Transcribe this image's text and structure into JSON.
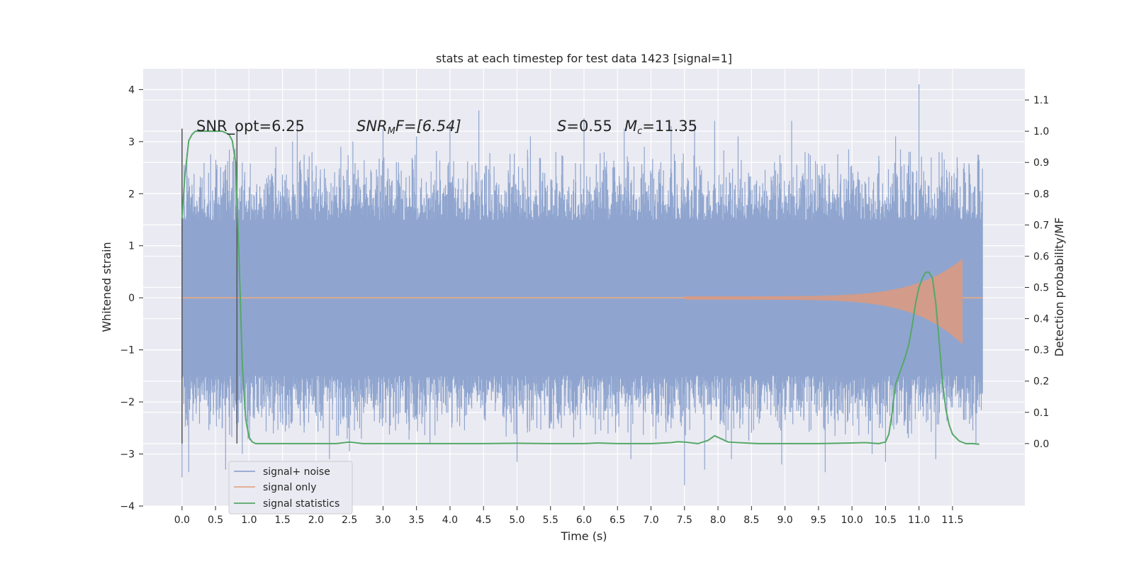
{
  "chart_data": {
    "type": "line",
    "title": "stats at each timestep for test data 1423 [signal=1]",
    "xlabel": "Time (s)",
    "ylabel": "Whitened strain",
    "ylabel_right": "Detection probability/MF",
    "xlim": [
      -0.58,
      12.58
    ],
    "ylim": [
      -4,
      4.4
    ],
    "ylim_right": [
      -0.2,
      1.2
    ],
    "x_ticks": [
      0.0,
      0.5,
      1.0,
      1.5,
      2.0,
      2.5,
      3.0,
      3.5,
      4.0,
      4.5,
      5.0,
      5.5,
      6.0,
      6.5,
      7.0,
      7.5,
      8.0,
      8.5,
      9.0,
      9.5,
      10.0,
      10.5,
      11.0,
      11.5
    ],
    "x_tick_labels": [
      "0.0",
      "0.5",
      "1.0",
      "1.5",
      "2.0",
      "2.5",
      "3.0",
      "3.5",
      "4.0",
      "4.5",
      "5.0",
      "5.5",
      "6.0",
      "6.5",
      "7.0",
      "7.5",
      "8.0",
      "8.5",
      "9.0",
      "9.5",
      "10.0",
      "10.5",
      "11.0",
      "11.5"
    ],
    "y_ticks": [
      -4,
      -3,
      -2,
      -1,
      0,
      1,
      2,
      3,
      4
    ],
    "y_tick_labels": [
      "−4",
      "−3",
      "−2",
      "−1",
      "0",
      "1",
      "2",
      "3",
      "4"
    ],
    "y2_ticks": [
      0.0,
      0.1,
      0.2,
      0.3,
      0.4,
      0.5,
      0.6,
      0.7,
      0.8,
      0.9,
      1.0,
      1.1
    ],
    "y2_tick_labels": [
      "0.0",
      "0.1",
      "0.2",
      "0.3",
      "0.4",
      "0.5",
      "0.6",
      "0.7",
      "0.8",
      "0.9",
      "1.0",
      "1.1"
    ],
    "grid": true,
    "legend_position": "lower-left",
    "colors": {
      "background": "#eaeaf2",
      "grid": "#ffffff",
      "signal_noise": "#8fa5cf",
      "signal_only": "#dd8452",
      "statistics": "#55a868",
      "marker": "#555555"
    },
    "series": [
      {
        "name": "signal+ noise",
        "axis": "left",
        "description": "noisy whitened strain, spans x 0.0 to 11.95",
        "x_range": [
          0.0,
          11.95
        ],
        "envelope": [
          -1.5,
          1.5
        ],
        "peaks": [
          [
            0.1,
            2.3
          ],
          [
            0.3,
            2.3
          ],
          [
            0.65,
            2.55
          ],
          [
            0.9,
            2.6
          ],
          [
            1.4,
            2.9
          ],
          [
            1.65,
            3.0
          ],
          [
            1.72,
            3.4
          ],
          [
            2.37,
            2.9
          ],
          [
            2.55,
            3.0
          ],
          [
            3.0,
            3.25
          ],
          [
            3.5,
            3.1
          ],
          [
            4.0,
            3.35
          ],
          [
            4.43,
            3.6
          ],
          [
            5.2,
            3.1
          ],
          [
            5.58,
            2.8
          ],
          [
            6.0,
            3.45
          ],
          [
            6.3,
            2.8
          ],
          [
            6.6,
            3.25
          ],
          [
            6.9,
            2.9
          ],
          [
            7.3,
            3.3
          ],
          [
            7.65,
            3.35
          ],
          [
            7.95,
            3.4
          ],
          [
            8.3,
            3.1
          ],
          [
            9.1,
            3.4
          ],
          [
            9.3,
            2.8
          ],
          [
            9.95,
            2.85
          ],
          [
            10.65,
            3.1
          ],
          [
            10.85,
            2.8
          ],
          [
            11.0,
            4.1
          ],
          [
            11.3,
            2.8
          ],
          [
            11.57,
            2.7
          ],
          [
            0.0,
            -3.45
          ],
          [
            0.1,
            -3.35
          ],
          [
            0.65,
            -3.3
          ],
          [
            0.9,
            -3.0
          ],
          [
            2.2,
            -3.1
          ],
          [
            2.5,
            -2.95
          ],
          [
            3.7,
            -2.8
          ],
          [
            5.0,
            -3.15
          ],
          [
            6.7,
            -3.1
          ],
          [
            7.5,
            -3.6
          ],
          [
            7.8,
            -3.3
          ],
          [
            8.2,
            -3.1
          ],
          [
            8.95,
            -3.2
          ],
          [
            9.6,
            -3.35
          ],
          [
            10.3,
            -3.0
          ],
          [
            10.5,
            -3.15
          ],
          [
            11.25,
            -3.1
          ],
          [
            11.85,
            -2.8
          ]
        ]
      },
      {
        "name": "signal only",
        "axis": "left",
        "description": "chirp signal, amplitude grows until merger near 11.65",
        "chirp_start": 7.5,
        "chirp_end": 11.65,
        "peak_amplitude": 0.75,
        "trough_amplitude": -0.9
      },
      {
        "name": "signal statistics",
        "axis": "right",
        "x": [
          0.0,
          0.04,
          0.1,
          0.15,
          0.2,
          0.3,
          0.4,
          0.5,
          0.6,
          0.7,
          0.75,
          0.8,
          0.85,
          0.9,
          0.95,
          1.0,
          1.05,
          1.1,
          1.2,
          1.5,
          2.0,
          2.3,
          2.5,
          2.7,
          3.0,
          3.5,
          4.0,
          4.5,
          5.0,
          5.5,
          6.0,
          6.2,
          6.5,
          7.0,
          7.3,
          7.4,
          7.5,
          7.7,
          7.85,
          7.95,
          8.05,
          8.15,
          8.3,
          8.6,
          9.0,
          9.5,
          10.0,
          10.2,
          10.4,
          10.5,
          10.55,
          10.6,
          10.65,
          10.7,
          10.75,
          10.8,
          10.85,
          10.9,
          10.95,
          11.0,
          11.05,
          11.1,
          11.15,
          11.2,
          11.25,
          11.3,
          11.35,
          11.4,
          11.45,
          11.5,
          11.6,
          11.7,
          11.8,
          11.9
        ],
        "values": [
          0.72,
          0.85,
          0.97,
          0.99,
          1.0,
          1.0,
          1.0,
          1.0,
          1.0,
          0.99,
          0.97,
          0.9,
          0.6,
          0.25,
          0.08,
          0.02,
          0.005,
          0.0,
          0.0,
          0.0,
          0.0,
          0.0,
          0.005,
          0.0,
          0.0,
          0.0,
          0.0,
          0.0,
          0.001,
          0.0,
          0.0,
          0.002,
          0.0,
          0.0,
          0.003,
          0.006,
          0.005,
          0.0,
          0.01,
          0.025,
          0.015,
          0.005,
          0.003,
          0.0,
          0.0,
          0.0,
          0.002,
          0.003,
          0.0,
          0.005,
          0.03,
          0.1,
          0.19,
          0.22,
          0.25,
          0.28,
          0.32,
          0.38,
          0.45,
          0.5,
          0.53,
          0.548,
          0.548,
          0.53,
          0.45,
          0.33,
          0.2,
          0.11,
          0.06,
          0.03,
          0.008,
          0.0,
          0.0,
          -0.002
        ]
      }
    ],
    "vertical_markers": [
      {
        "x": 0.0,
        "y_range": [
          -2.8,
          3.25
        ]
      },
      {
        "x": 0.82,
        "y_range": [
          -2.8,
          3.25
        ]
      }
    ],
    "annotations": [
      {
        "text": "SNR_opt=6.25",
        "x": 0.2,
        "y": 3.33
      },
      {
        "text": "SNR_M F=[6.54]",
        "x": 2.62,
        "y": 3.33
      },
      {
        "text": "S=0.55",
        "x": 5.62,
        "y": 3.33
      },
      {
        "text": "M_c=11.35",
        "x": 6.62,
        "y": 3.33
      }
    ]
  },
  "text": {
    "title": "stats at each timestep for test data 1423 [signal=1]",
    "xlabel": "Time (s)",
    "ylabel": "Whitened strain",
    "ylabel_right": "Detection probability/MF",
    "annot_snr_opt": "SNR_opt=6.25",
    "annot_snr_mf_main": "SNR",
    "annot_snr_mf_sub": "M",
    "annot_snr_mf_rest": "F=[6.54]",
    "annot_s_symbol": "S",
    "annot_s_value": "=0.55",
    "annot_mc_symbol": "M",
    "annot_mc_sub": "c",
    "annot_mc_value": "=11.35",
    "legend_signal_noise": "signal+ noise",
    "legend_signal_only": "signal only",
    "legend_statistics": "signal statistics"
  }
}
